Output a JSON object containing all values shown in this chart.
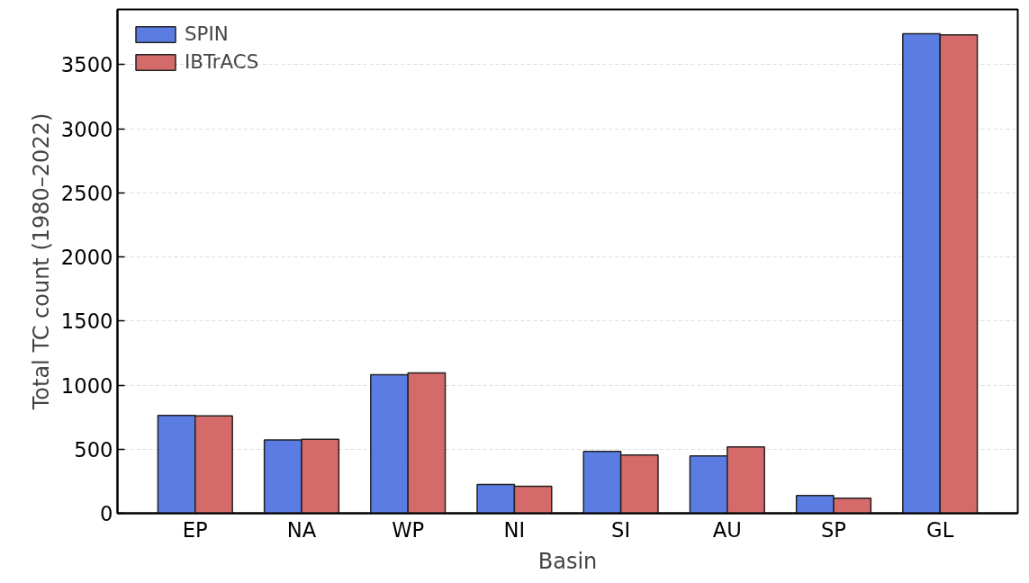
{
  "chart_data": {
    "type": "bar",
    "xlabel": "Basin",
    "ylabel": "Total TC count (1980–2022)",
    "categories": [
      "EP",
      "NA",
      "WP",
      "NI",
      "SI",
      "AU",
      "SP",
      "GL"
    ],
    "series": [
      {
        "name": "SPIN",
        "color": "#5b7de3",
        "values": [
          763,
          572,
          1081,
          225,
          483,
          448,
          139,
          3740
        ]
      },
      {
        "name": "IBTrACS",
        "color": "#d46a6a",
        "values": [
          760,
          578,
          1095,
          211,
          454,
          517,
          118,
          3731
        ]
      }
    ],
    "ylim": [
      0,
      3930
    ],
    "yticks": [
      0,
      500,
      1000,
      1500,
      2000,
      2500,
      3000,
      3500
    ],
    "grid": "y",
    "legend": "top left"
  }
}
